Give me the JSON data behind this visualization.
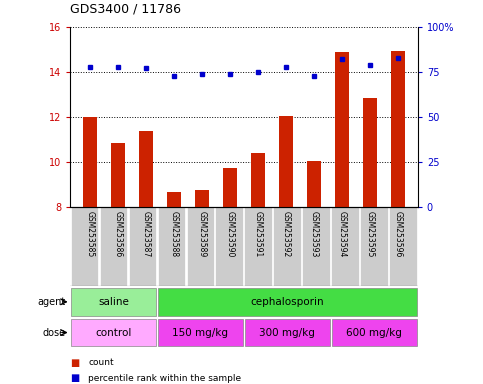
{
  "title": "GDS3400 / 11786",
  "samples": [
    "GSM253585",
    "GSM253586",
    "GSM253587",
    "GSM253588",
    "GSM253589",
    "GSM253590",
    "GSM253591",
    "GSM253592",
    "GSM253593",
    "GSM253594",
    "GSM253595",
    "GSM253596"
  ],
  "count_values": [
    12.0,
    10.85,
    11.4,
    8.7,
    8.75,
    9.75,
    10.4,
    12.05,
    10.05,
    14.9,
    12.85,
    14.95
  ],
  "percentile_values": [
    78,
    78,
    77,
    73,
    74,
    74,
    75,
    78,
    73,
    82,
    79,
    83
  ],
  "count_ylim": [
    8,
    16
  ],
  "count_yticks": [
    8,
    10,
    12,
    14,
    16
  ],
  "percentile_ylim": [
    0,
    100
  ],
  "percentile_yticks": [
    0,
    25,
    50,
    75,
    100
  ],
  "percentile_yticklabels": [
    "0",
    "25",
    "50",
    "75",
    "100%"
  ],
  "bar_color": "#cc2200",
  "dot_color": "#0000cc",
  "bar_bottom": 8,
  "agent_groups": [
    {
      "label": "saline",
      "start": 0,
      "end": 3,
      "color": "#99ee99"
    },
    {
      "label": "cephalosporin",
      "start": 3,
      "end": 12,
      "color": "#44dd44"
    }
  ],
  "dose_groups": [
    {
      "label": "control",
      "start": 0,
      "end": 3,
      "color": "#ffaaff"
    },
    {
      "label": "150 mg/kg",
      "start": 3,
      "end": 6,
      "color": "#ee44ee"
    },
    {
      "label": "300 mg/kg",
      "start": 6,
      "end": 9,
      "color": "#ee44ee"
    },
    {
      "label": "600 mg/kg",
      "start": 9,
      "end": 12,
      "color": "#ee44ee"
    }
  ],
  "legend_count_color": "#cc2200",
  "legend_percentile_color": "#0000cc",
  "tick_label_left_color": "#cc0000",
  "tick_label_right_color": "#0000cc",
  "grid_color": "#000000",
  "background_color": "#ffffff",
  "plot_bg_color": "#ffffff",
  "label_bg_color": "#cccccc"
}
